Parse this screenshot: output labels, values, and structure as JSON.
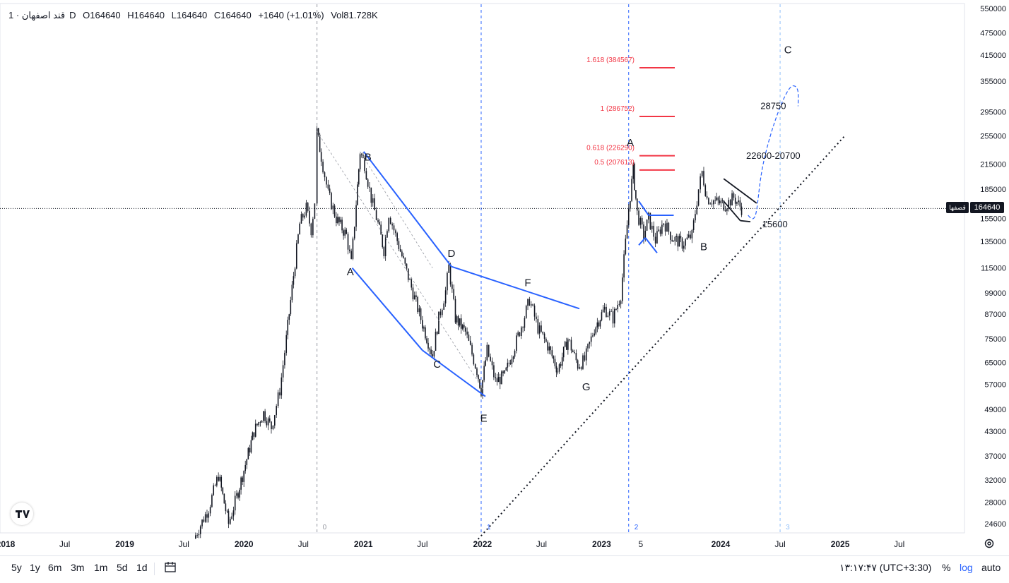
{
  "header": {
    "symbol": "قند اصفهان",
    "interval": "· 1D",
    "open": "O164640",
    "high": "H164640",
    "low": "L164640",
    "close": "C164640",
    "change": "+1640 (+1.01%)",
    "volume": "Vol81.728K"
  },
  "current_price": {
    "label": "164640",
    "symbol_short": "قصفها",
    "value": 164640
  },
  "bottom_bar": {
    "ranges": [
      "5y",
      "1y",
      "6m",
      "3m",
      "1m",
      "5d",
      "1d"
    ],
    "clock": "۱۳:۱۷:۴۷ (UTC+3:30)",
    "percent": "%",
    "log": "log",
    "auto": "auto"
  },
  "colors": {
    "candles": "#131722",
    "channel": "#2962ff",
    "fib": "#f23645",
    "projection": "#2962ff",
    "grid": "#e0e3eb"
  },
  "chart_data": {
    "type": "candlestick",
    "y_scale": "log",
    "ylim": [
      22000,
      550000
    ],
    "price_axis_labels": [
      "550000",
      "475000",
      "415000",
      "355000",
      "295000",
      "255000",
      "215000",
      "185000",
      "155000",
      "135000",
      "115000",
      "99000",
      "87000",
      "75000",
      "65000",
      "57000",
      "49000",
      "43000",
      "37000",
      "32000",
      "28000",
      "24600"
    ],
    "time_axis_labels": [
      "2018",
      "Jul",
      "2019",
      "Jul",
      "2020",
      "Jul",
      "2021",
      "Jul",
      "2022",
      "Jul",
      "2023",
      "5",
      "2024",
      "Jul",
      "2025",
      "Jul"
    ],
    "price_path": [
      [
        "2019-08-01",
        22500
      ],
      [
        "2019-09-15",
        27000
      ],
      [
        "2019-10-15",
        33000
      ],
      [
        "2019-11-15",
        24600
      ],
      [
        "2019-12-10",
        29000
      ],
      [
        "2020-01-01",
        34000
      ],
      [
        "2020-02-01",
        43000
      ],
      [
        "2020-03-01",
        48000
      ],
      [
        "2020-03-25",
        44000
      ],
      [
        "2020-04-20",
        55000
      ],
      [
        "2020-05-10",
        75000
      ],
      [
        "2020-06-01",
        110000
      ],
      [
        "2020-06-20",
        150000
      ],
      [
        "2020-07-10",
        165000
      ],
      [
        "2020-07-25",
        145000
      ],
      [
        "2020-08-05",
        172000
      ],
      [
        "2020-08-12",
        262000
      ],
      [
        "2020-08-25",
        225000
      ],
      [
        "2020-09-15",
        180000
      ],
      [
        "2020-10-10",
        155000
      ],
      [
        "2020-11-10",
        140000
      ],
      [
        "2020-11-25",
        118000
      ],
      [
        "2020-12-10",
        170000
      ],
      [
        "2020-12-22",
        232000
      ],
      [
        "2021-01-05",
        215000
      ],
      [
        "2021-01-25",
        175000
      ],
      [
        "2021-02-15",
        150000
      ],
      [
        "2021-03-05",
        128000
      ],
      [
        "2021-03-20",
        160000
      ],
      [
        "2021-04-10",
        140000
      ],
      [
        "2021-07-01",
        82000
      ],
      [
        "2021-08-01",
        68000
      ],
      [
        "2021-08-20",
        85000
      ],
      [
        "2021-09-10",
        100000
      ],
      [
        "2021-09-20",
        116000
      ],
      [
        "2021-10-10",
        85000
      ],
      [
        "2021-11-10",
        78000
      ],
      [
        "2021-12-15",
        62000
      ],
      [
        "2021-12-28",
        55000
      ],
      [
        "2022-01-15",
        70000
      ],
      [
        "2022-02-10",
        58000
      ],
      [
        "2022-03-10",
        60000
      ],
      [
        "2022-04-10",
        72000
      ],
      [
        "2022-05-10",
        86000
      ],
      [
        "2022-05-25",
        95000
      ],
      [
        "2022-06-20",
        80000
      ],
      [
        "2022-07-20",
        72000
      ],
      [
        "2022-08-20",
        62000
      ],
      [
        "2022-09-20",
        75000
      ],
      [
        "2022-10-20",
        64000
      ],
      [
        "2022-11-10",
        66000
      ],
      [
        "2022-12-10",
        80000
      ],
      [
        "2023-01-10",
        90000
      ],
      [
        "2023-02-05",
        85000
      ],
      [
        "2023-03-01",
        98000
      ],
      [
        "2023-03-25",
        165000
      ],
      [
        "2023-04-08",
        208000
      ],
      [
        "2023-04-20",
        160000
      ],
      [
        "2023-05-10",
        140000
      ],
      [
        "2023-05-25",
        155000
      ],
      [
        "2023-06-15",
        136000
      ],
      [
        "2023-07-10",
        152000
      ],
      [
        "2023-08-05",
        138000
      ],
      [
        "2023-09-05",
        133000
      ],
      [
        "2023-10-05",
        140000
      ],
      [
        "2023-10-25",
        185000
      ],
      [
        "2023-11-05",
        205000
      ],
      [
        "2023-11-20",
        175000
      ],
      [
        "2023-12-15",
        172000
      ],
      [
        "2024-01-15",
        168000
      ],
      [
        "2024-02-10",
        176000
      ],
      [
        "2024-03-05",
        164640
      ]
    ],
    "wave_labels": [
      {
        "text": "A",
        "date": "2020-11-22",
        "price": 110000
      },
      {
        "text": "B",
        "date": "2021-01-15",
        "price": 220000
      },
      {
        "text": "C",
        "date": "2021-08-15",
        "price": 63000
      },
      {
        "text": "D",
        "date": "2021-09-28",
        "price": 123000
      },
      {
        "text": "E",
        "date": "2022-01-05",
        "price": 45500
      },
      {
        "text": "F",
        "date": "2022-05-20",
        "price": 103000
      },
      {
        "text": "G",
        "date": "2022-11-15",
        "price": 55000
      },
      {
        "text": "A",
        "date": "2023-03-30",
        "price": 240000
      },
      {
        "text": "B",
        "date": "2023-11-10",
        "price": 128000
      },
      {
        "text": "C",
        "date": "2024-07-25",
        "price": 420000
      },
      {
        "text": "28750",
        "date": "2024-06-10",
        "price": 300000
      },
      {
        "text": "22600-20700",
        "date": "2024-06-10",
        "price": 222000
      },
      {
        "text": "15600",
        "date": "2024-06-15",
        "price": 147000
      }
    ],
    "fib_levels": [
      {
        "label": "1.618 (384567)",
        "price": 384567
      },
      {
        "label": "1 (286752)",
        "price": 286752
      },
      {
        "label": "0.618 (226290)",
        "price": 226290
      },
      {
        "label": "0.5 (207613)",
        "price": 207613
      }
    ],
    "cycle_markers": [
      "0",
      "1",
      "2",
      "3"
    ],
    "trendline": {
      "from": [
        "2021-12-10",
        22000
      ],
      "to": [
        "2025-01-15",
        255000
      ]
    }
  }
}
